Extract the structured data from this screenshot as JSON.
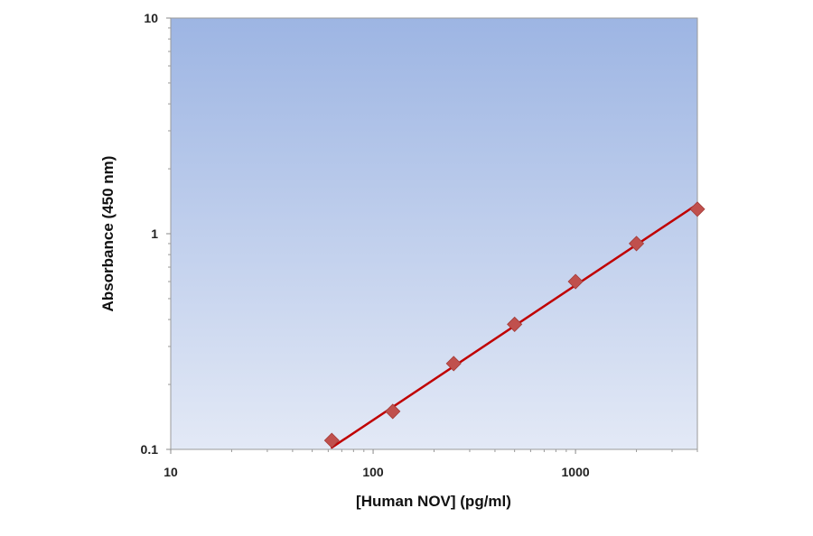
{
  "chart_data": {
    "type": "scatter",
    "title": "",
    "xlabel": "[Human NOV] (pg/ml)",
    "ylabel": "Absorbance (450 nm)",
    "xscale": "log",
    "yscale": "log",
    "xlim": [
      10,
      4000
    ],
    "ylim": [
      0.1,
      10
    ],
    "xticks": [
      10,
      100,
      1000
    ],
    "xtick_labels": [
      "10",
      "100",
      "1000"
    ],
    "yticks": [
      0.1,
      1,
      10
    ],
    "ytick_labels": [
      "0.1",
      "1",
      "10"
    ],
    "grid": false,
    "legend": "none",
    "series": [
      {
        "x": [
          62.5,
          125,
          250,
          500,
          1000,
          2000,
          4000
        ],
        "y": [
          0.11,
          0.15,
          0.25,
          0.38,
          0.6,
          0.9,
          1.3
        ],
        "marker": "diamond",
        "color": "#c0504d"
      }
    ],
    "fit_line": {
      "x": [
        62.5,
        4000
      ],
      "y": [
        0.102,
        1.37
      ],
      "color": "#c00000"
    },
    "plot_background": [
      "#9db5e3",
      "#e3e9f6"
    ]
  }
}
